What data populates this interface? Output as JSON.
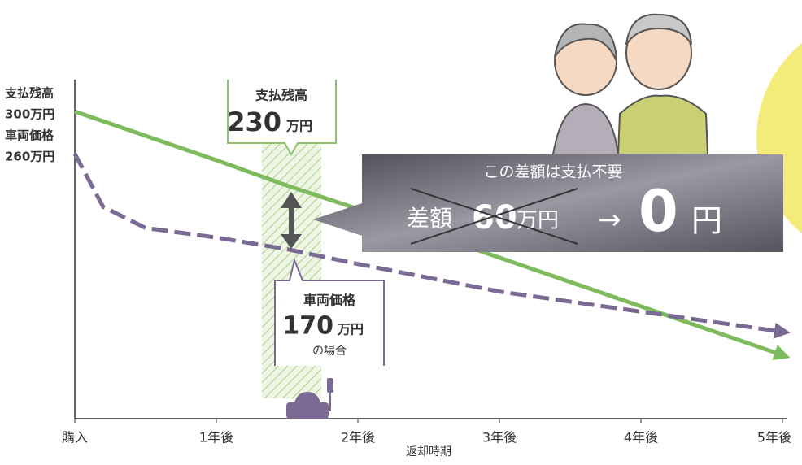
{
  "chart_data": {
    "type": "line",
    "xlabel": "返却時期",
    "xlim": [
      0,
      5
    ],
    "ylim": [
      10,
      330
    ],
    "xticks": [
      {
        "value": 0,
        "label": "購入"
      },
      {
        "value": 1,
        "label": "1年後"
      },
      {
        "value": 2,
        "label": "2年後"
      },
      {
        "value": 3,
        "label": "3年後"
      },
      {
        "value": 4,
        "label": "4年後"
      },
      {
        "value": 5,
        "label": "5年後"
      }
    ],
    "series": [
      {
        "name": "支払残高",
        "color": "#7dbb5c",
        "dashed": false,
        "x": [
          0,
          1,
          1.5,
          2,
          3,
          4,
          5
        ],
        "values": [
          300,
          254,
          230,
          208,
          162,
          116,
          70
        ],
        "value_labels": [
          "300万円",
          null,
          null,
          null,
          null,
          null,
          null
        ]
      },
      {
        "name": "車両価格",
        "color": "#7a6a94",
        "dashed": true,
        "x": [
          0,
          0.2,
          0.5,
          1,
          1.5,
          2,
          3,
          4,
          5
        ],
        "values": [
          260,
          210,
          190,
          181,
          170,
          156,
          130,
          111,
          92
        ],
        "value_labels": [
          "260万円",
          null,
          null,
          null,
          null,
          null,
          null,
          null,
          null
        ]
      }
    ],
    "annotations": {
      "balance": {
        "label": "支払残高",
        "value": 230,
        "unit": "万円"
      },
      "price": {
        "label": "車両価格",
        "value": 170,
        "unit": "万円",
        "note": "の場合"
      },
      "callout": {
        "title": "この差額は支払不要",
        "label": "差額",
        "value": 60,
        "unit": "万円",
        "arrow": "→",
        "result": 0,
        "result_unit": "円"
      }
    }
  }
}
